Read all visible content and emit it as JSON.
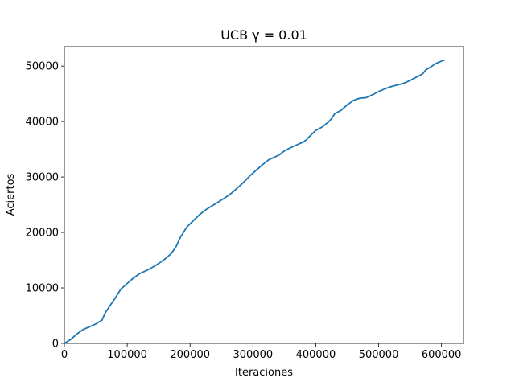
{
  "chart_data": {
    "type": "line",
    "title": "UCB γ = 0.01",
    "xlabel": "Iteraciones",
    "ylabel": "Aciertos",
    "xlim": [
      0,
      635000
    ],
    "ylim": [
      0,
      53500
    ],
    "xticks": [
      0,
      100000,
      200000,
      300000,
      400000,
      500000,
      600000
    ],
    "yticks": [
      0,
      10000,
      20000,
      30000,
      40000,
      50000
    ],
    "grid": false,
    "series": [
      {
        "color": "#1f77b4",
        "x": [
          0,
          10000,
          20000,
          30000,
          40000,
          50000,
          60000,
          65000,
          72000,
          80000,
          90000,
          100000,
          110000,
          120000,
          130000,
          140000,
          150000,
          160000,
          170000,
          178000,
          185000,
          195000,
          205000,
          215000,
          225000,
          235000,
          245000,
          255000,
          265000,
          275000,
          282000,
          290000,
          295000,
          305000,
          315000,
          325000,
          335000,
          342000,
          350000,
          360000,
          370000,
          380000,
          385000,
          390000,
          400000,
          410000,
          420000,
          425000,
          430000,
          440000,
          450000,
          460000,
          470000,
          480000,
          490000,
          500000,
          510000,
          520000,
          530000,
          540000,
          550000,
          560000,
          570000,
          575000,
          585000,
          590000,
          600000,
          605000
        ],
        "y": [
          0,
          700,
          1700,
          2500,
          3000,
          3500,
          4200,
          5500,
          6700,
          8000,
          9800,
          10800,
          11800,
          12600,
          13100,
          13700,
          14400,
          15200,
          16200,
          17500,
          19200,
          21000,
          22100,
          23200,
          24100,
          24800,
          25500,
          26200,
          27000,
          28000,
          28700,
          29600,
          30200,
          31200,
          32200,
          33100,
          33600,
          34000,
          34700,
          35300,
          35800,
          36300,
          36700,
          37300,
          38400,
          39000,
          39900,
          40500,
          41400,
          42000,
          43000,
          43800,
          44200,
          44300,
          44800,
          45400,
          45900,
          46300,
          46600,
          46900,
          47400,
          48000,
          48600,
          49300,
          50000,
          50400,
          50900,
          51100
        ]
      }
    ]
  }
}
